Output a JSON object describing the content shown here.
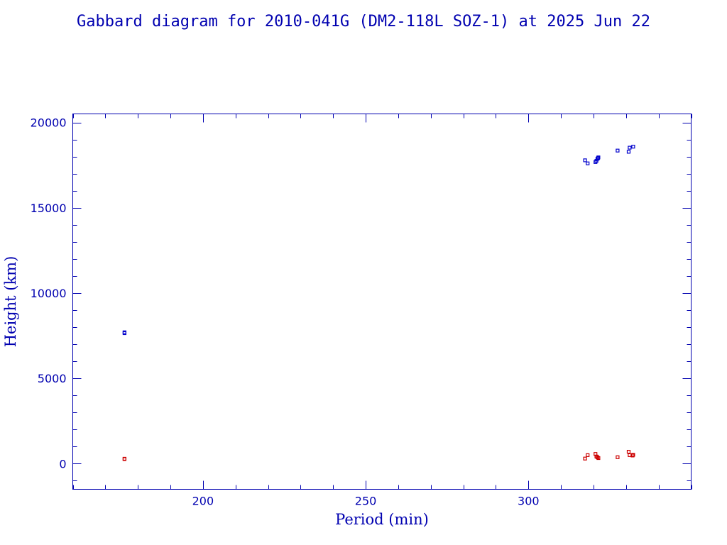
{
  "chart_data": {
    "type": "scatter",
    "title": "Gabbard diagram for 2010-041G (DM2-118L SOZ-1) at 2025 Jun 22",
    "xlabel": "Period (min)",
    "ylabel": "Height (km)",
    "xlim": [
      160,
      350
    ],
    "ylim": [
      -1500,
      20500
    ],
    "xticks": [
      200,
      250,
      300
    ],
    "yticks": [
      0,
      5000,
      10000,
      15000,
      20000
    ],
    "xticklabels": [
      "200",
      "250",
      "300"
    ],
    "yticklabels": [
      "0",
      "5000",
      "10000",
      "15000",
      "20000"
    ],
    "xminor_step": 10,
    "yminor_step": 1000,
    "grid": false,
    "legend": "none",
    "series": [
      {
        "color": "#0000cc",
        "points": [
          [
            175.9,
            7650
          ],
          [
            175.9,
            7700
          ],
          [
            317.4,
            17780
          ],
          [
            318.2,
            17600
          ],
          [
            320.6,
            17680
          ],
          [
            320.9,
            17750
          ],
          [
            321.2,
            17870
          ],
          [
            321.5,
            17950
          ],
          [
            321.4,
            17910
          ],
          [
            327.4,
            18350
          ],
          [
            330.8,
            18280
          ],
          [
            331.1,
            18520
          ],
          [
            332.2,
            18580
          ]
        ]
      },
      {
        "color": "#cc0000",
        "points": [
          [
            175.9,
            290
          ],
          [
            175.9,
            270
          ],
          [
            317.4,
            300
          ],
          [
            318.2,
            500
          ],
          [
            320.6,
            570
          ],
          [
            320.9,
            420
          ],
          [
            321.2,
            380
          ],
          [
            321.5,
            330
          ],
          [
            327.4,
            380
          ],
          [
            330.8,
            700
          ],
          [
            331.1,
            500
          ],
          [
            332.2,
            520
          ],
          [
            332.0,
            480
          ]
        ]
      }
    ]
  }
}
